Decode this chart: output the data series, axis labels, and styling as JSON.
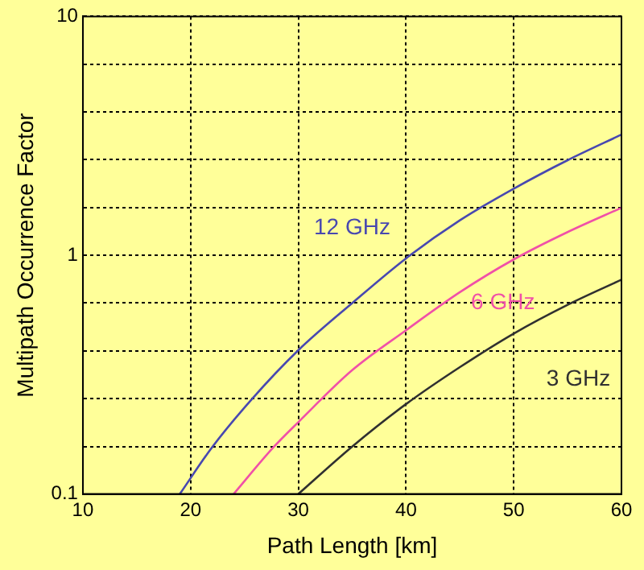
{
  "chart_data": {
    "type": "line",
    "xlabel": "Path Length [km]",
    "ylabel": "Multipath Occurrence Factor",
    "xlim": [
      10,
      60
    ],
    "xticks": [
      10,
      20,
      30,
      40,
      50,
      60
    ],
    "ylim": [
      0.1,
      10
    ],
    "yticks": [
      0.1,
      {
        "value": 0.158,
        "label": null
      },
      {
        "value": 0.251,
        "label": null
      },
      {
        "value": 0.398,
        "label": null
      },
      {
        "value": 0.631,
        "label": null
      },
      1,
      {
        "value": 1.58,
        "label": null
      },
      {
        "value": 2.51,
        "label": null
      },
      {
        "value": 3.98,
        "label": null
      },
      {
        "value": 6.31,
        "label": null
      },
      10
    ],
    "log": "y",
    "grid": true,
    "legend": false,
    "marker": "none",
    "line_style": "solid",
    "series": [
      {
        "name": "12 GHz",
        "color": "#4848b0",
        "x": [
          19,
          22,
          25.6,
          30,
          35,
          40,
          45,
          50,
          55,
          60
        ],
        "values": [
          0.1,
          0.157,
          0.247,
          0.4,
          0.63,
          0.97,
          1.4,
          1.9,
          2.5,
          3.2
        ]
      },
      {
        "name": "6 GHz",
        "color": "#f050a8",
        "x": [
          24,
          27.7,
          30,
          35,
          40,
          45,
          50,
          55,
          60
        ],
        "values": [
          0.1,
          0.157,
          0.2,
          0.33,
          0.485,
          0.7,
          0.96,
          1.25,
          1.58
        ]
      },
      {
        "name": "3 GHz",
        "color": "#303030",
        "x": [
          30,
          35,
          40,
          45,
          50,
          55,
          60
        ],
        "values": [
          0.1,
          0.158,
          0.238,
          0.34,
          0.47,
          0.62,
          0.79
        ]
      }
    ]
  }
}
